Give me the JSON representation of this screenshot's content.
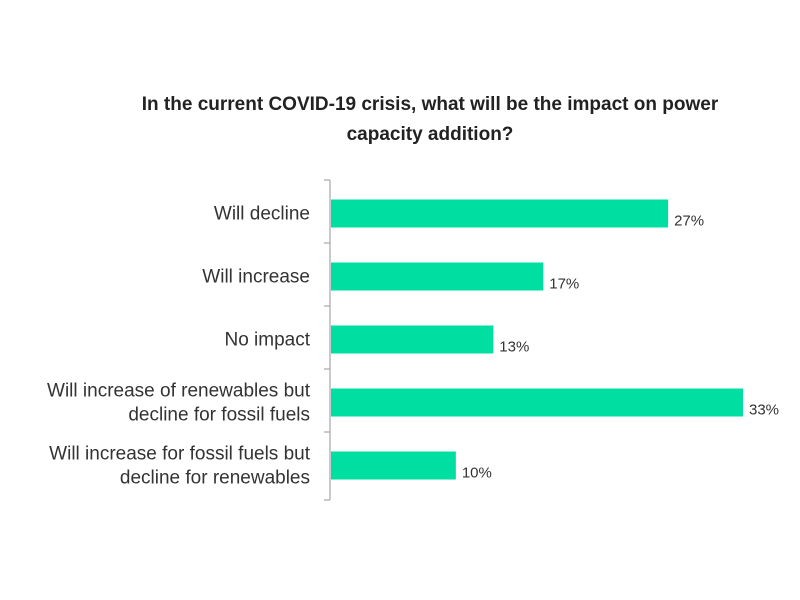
{
  "chart_data": {
    "type": "bar",
    "orientation": "horizontal",
    "title_lines": [
      "In the current COVID-19 crisis, what will be the impact on power",
      "capacity addition?"
    ],
    "categories": [
      [
        "Will decline"
      ],
      [
        "Will increase"
      ],
      [
        "No impact"
      ],
      [
        "Will increase of renewables but",
        "decline for fossil fuels"
      ],
      [
        "Will increase for fossil fuels but",
        "decline for renewables"
      ]
    ],
    "values": [
      27,
      17,
      13,
      33,
      10
    ],
    "value_labels": [
      "27%",
      "17%",
      "13%",
      "33%",
      "10%"
    ],
    "unit": "%",
    "xlim": [
      0,
      33
    ],
    "bar_color": "#00dfa2",
    "grid": false,
    "legend": "none"
  }
}
